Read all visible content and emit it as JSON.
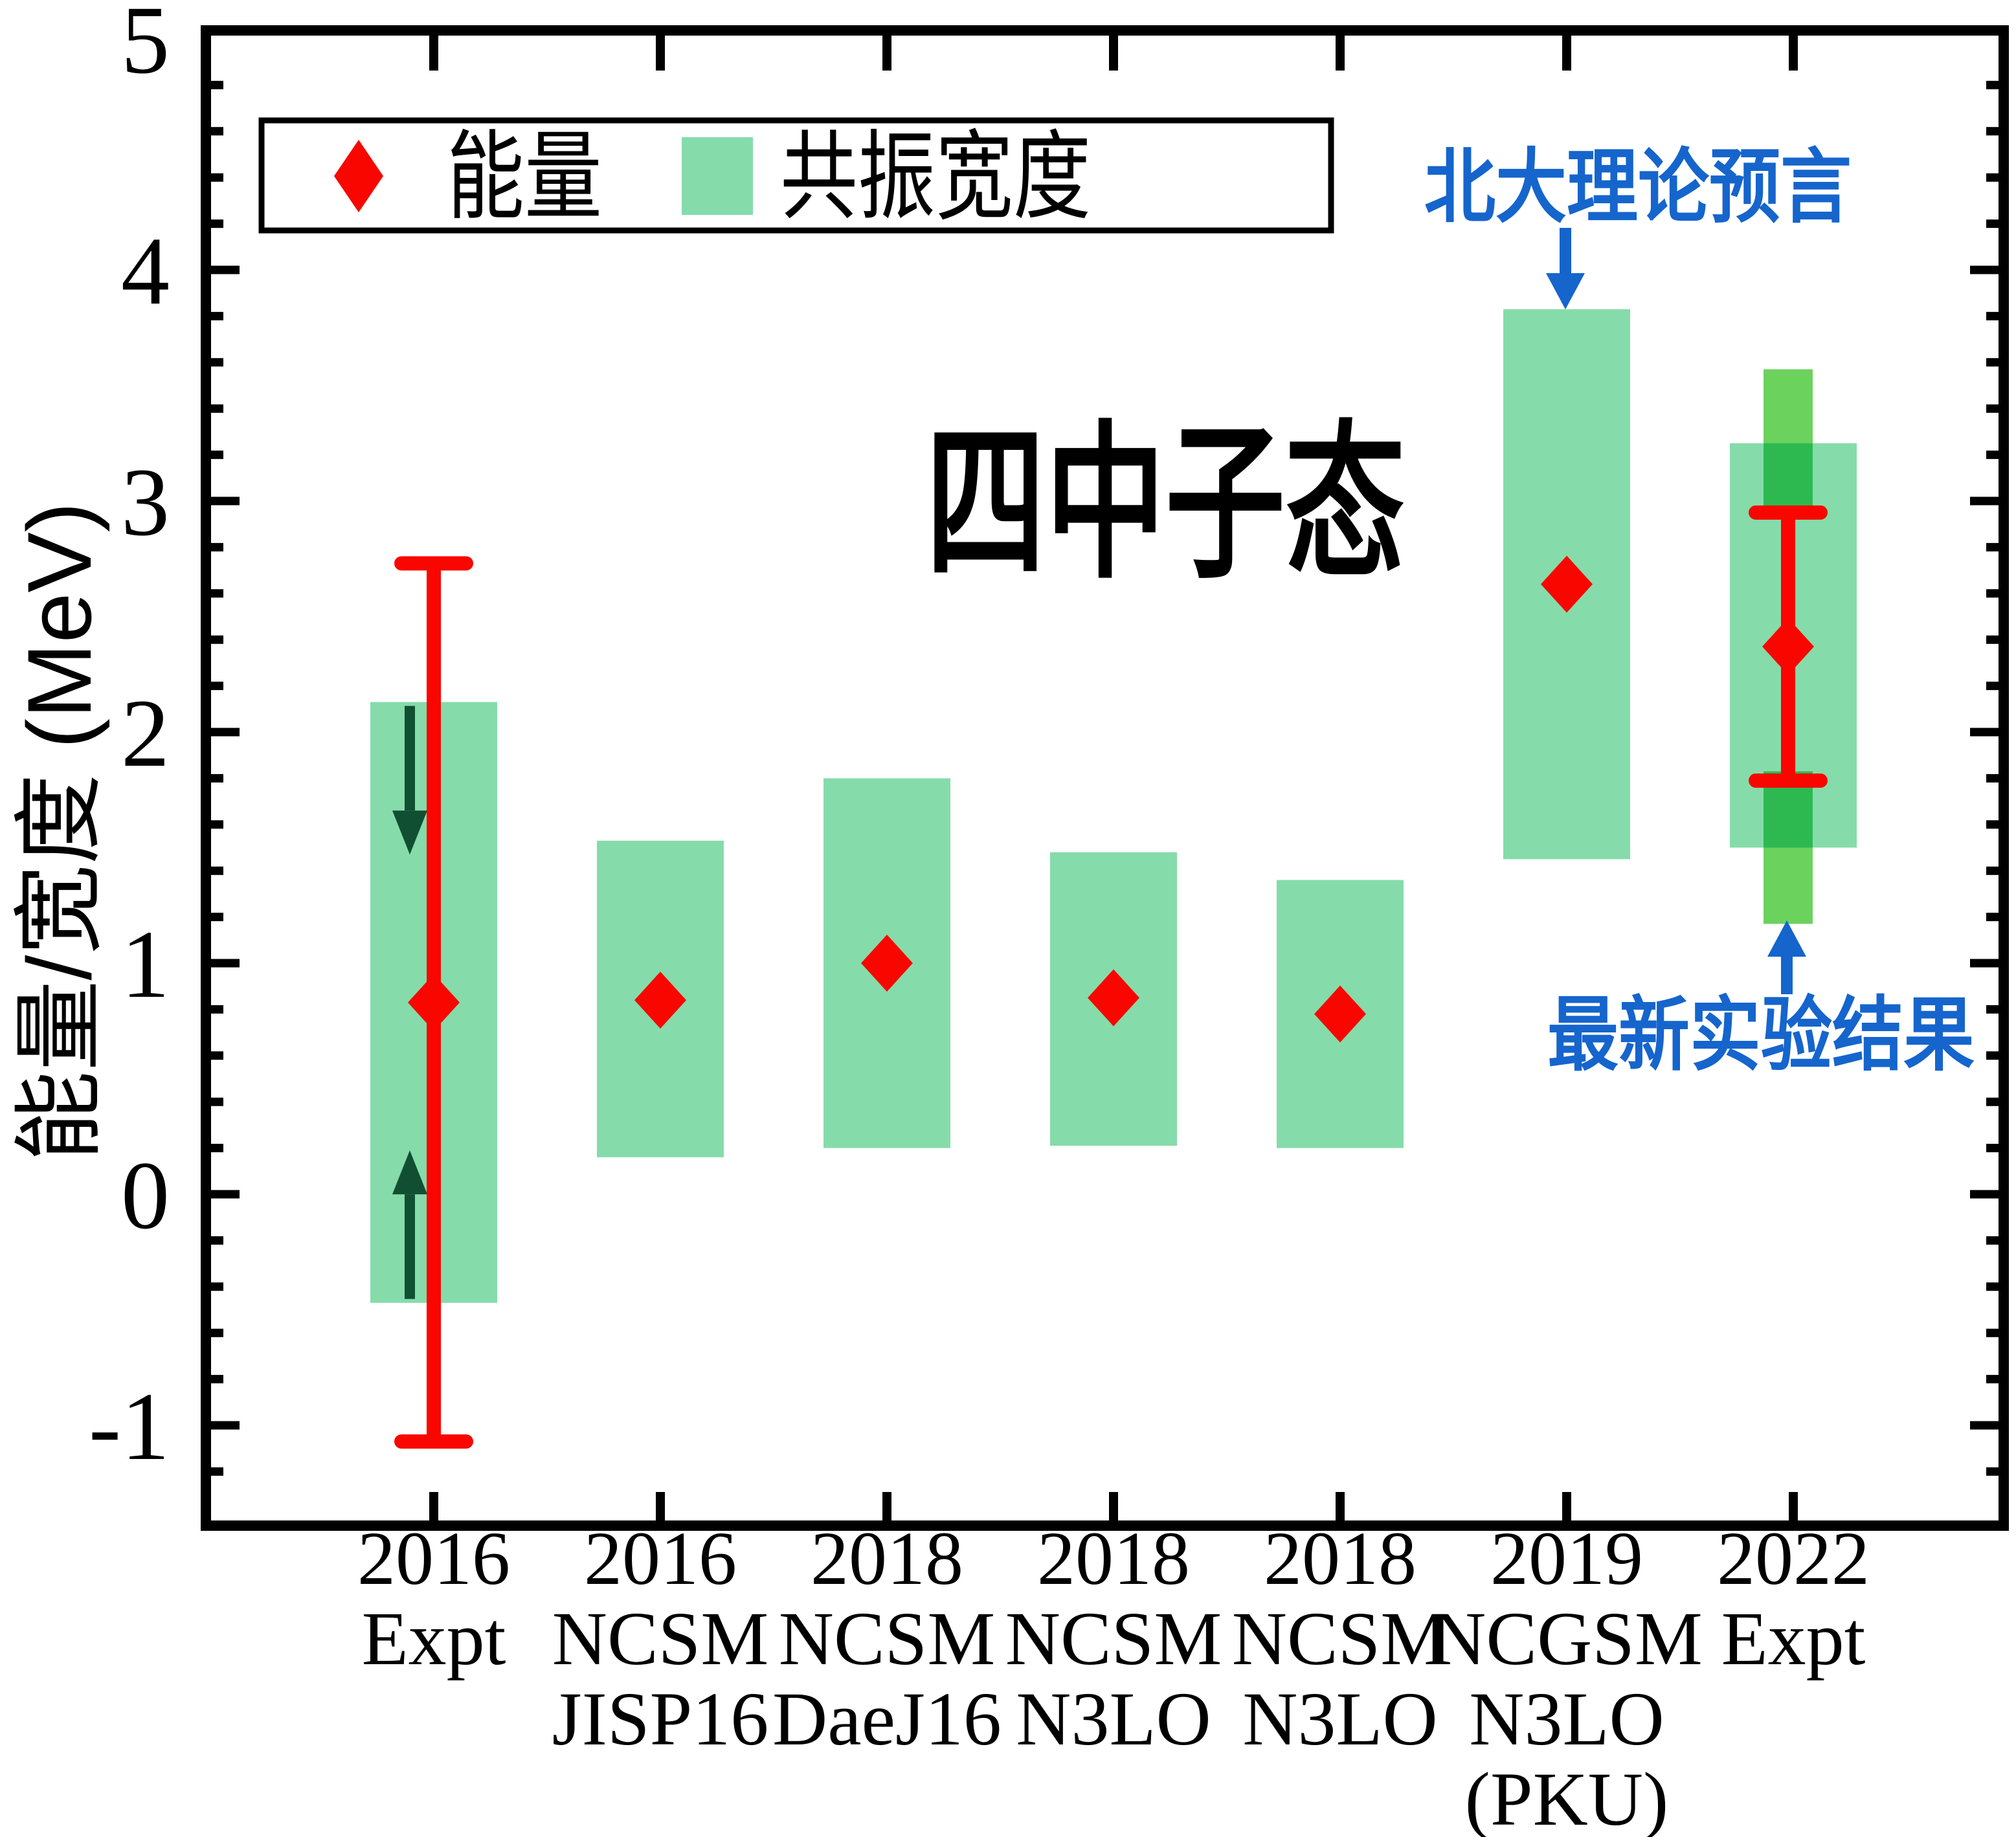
{
  "chart_data": {
    "type": "scatter",
    "title": "四中子态",
    "ylabel": "能量/宽度 (MeV)",
    "xlabel": "",
    "ylim": [
      -1.43,
      5.04
    ],
    "yticks": [
      "-1",
      "0",
      "1",
      "2",
      "3",
      "4",
      "5"
    ],
    "ytick_values": [
      -1,
      0,
      1,
      2,
      3,
      4,
      5
    ],
    "minor_tick_step": 0.2,
    "grid": false,
    "legend_position": "top-left",
    "legend": [
      {
        "label": "能量",
        "marker": "diamond",
        "color": "#f90600"
      },
      {
        "label": "共振宽度",
        "marker": "box",
        "color": "#85dcaa"
      }
    ],
    "categories": [
      {
        "lines": [
          "2016",
          "Expt"
        ]
      },
      {
        "lines": [
          "2016",
          "NCSM",
          "JISP16"
        ]
      },
      {
        "lines": [
          "2018",
          "NCSM",
          "DaeJ16"
        ]
      },
      {
        "lines": [
          "2018",
          "NCSM",
          "N3LO"
        ]
      },
      {
        "lines": [
          "2018",
          "NCSM",
          "N3LO"
        ]
      },
      {
        "lines": [
          "2019",
          "NCGSM",
          "N3LO",
          "(PKU)"
        ]
      },
      {
        "lines": [
          "2022",
          "Expt"
        ]
      }
    ],
    "groups": [
      {
        "category": 0,
        "energy": 0.83,
        "error_low": -1.07,
        "error_high": 2.73,
        "box_low": -0.47,
        "box_high": 2.13,
        "width_is_upper_limit": true
      },
      {
        "category": 1,
        "energy": 0.84,
        "box_low": 0.16,
        "box_high": 1.53
      },
      {
        "category": 2,
        "energy": 1.0,
        "box_low": 0.2,
        "box_high": 1.8
      },
      {
        "category": 3,
        "energy": 0.85,
        "box_low": 0.21,
        "box_high": 1.48
      },
      {
        "category": 4,
        "energy": 0.78,
        "box_low": 0.2,
        "box_high": 1.36
      },
      {
        "category": 5,
        "energy": 2.64,
        "box_low": 1.45,
        "box_high": 3.83
      },
      {
        "category": 6,
        "energy": 2.37,
        "error_low": 1.79,
        "error_high": 2.95,
        "box_low": 1.5,
        "box_high": 3.25,
        "edge_band_top": [
          2.92,
          3.57
        ],
        "edge_band_bottom": [
          1.17,
          1.83
        ]
      }
    ],
    "annotations": [
      {
        "text": "北大理论预言",
        "target_category": 5,
        "side": "top",
        "color": "#1565cd"
      },
      {
        "text": "最新实验结果",
        "target_category": 6,
        "side": "bottom",
        "color": "#1565cd"
      }
    ],
    "colors": {
      "energy_marker": "#f90600",
      "width_box": "#85dcaa",
      "edge_band": "#6cd25e",
      "edge_band_overlap": "#2db950",
      "limit_arrow": "#114f33",
      "annotation_blue": "#1565cd",
      "axis": "#000000"
    }
  }
}
